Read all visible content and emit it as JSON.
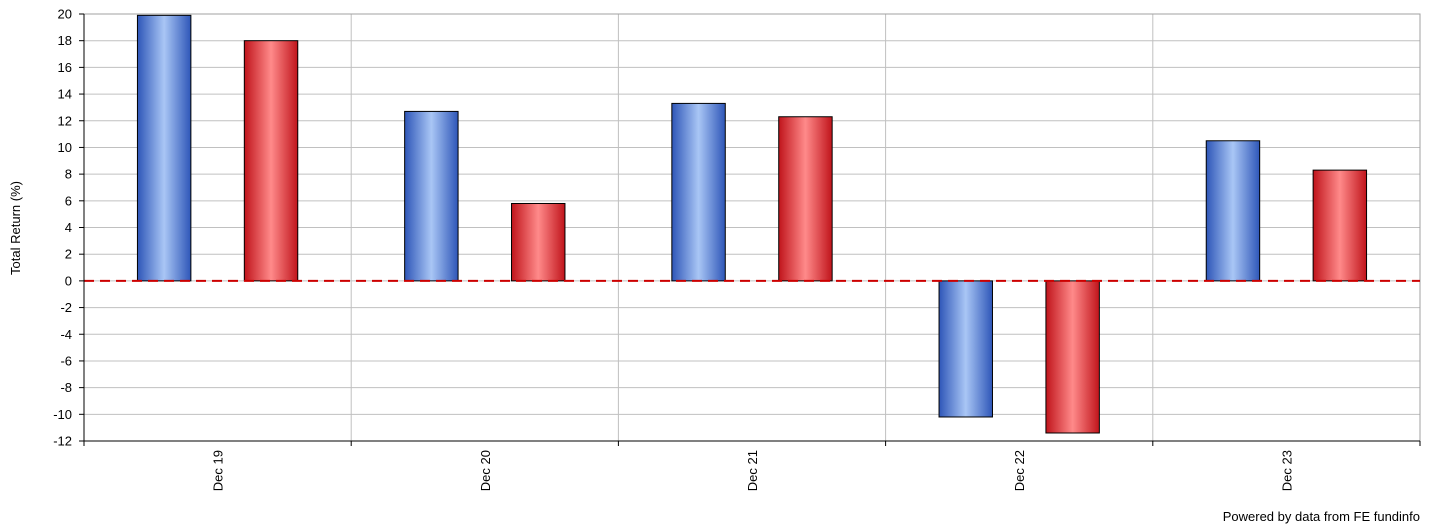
{
  "chart_data": {
    "type": "bar",
    "categories": [
      "Dec 19",
      "Dec 20",
      "Dec 21",
      "Dec 22",
      "Dec 23"
    ],
    "series": [
      {
        "color": "#5a85d6",
        "values": [
          19.9,
          12.7,
          13.3,
          -10.2,
          10.5
        ]
      },
      {
        "color": "#e0373a",
        "values": [
          18.0,
          5.8,
          12.3,
          -11.4,
          8.3
        ]
      }
    ],
    "ylabel": "Total Return (%)",
    "xlabel": "",
    "ylim": [
      -12,
      20
    ],
    "ytick_step": 2,
    "grid": true,
    "zero_line_color": "#cc0000",
    "zero_line_style": "dashed"
  },
  "footer": {
    "credit": "Powered by data from FE fundinfo"
  }
}
